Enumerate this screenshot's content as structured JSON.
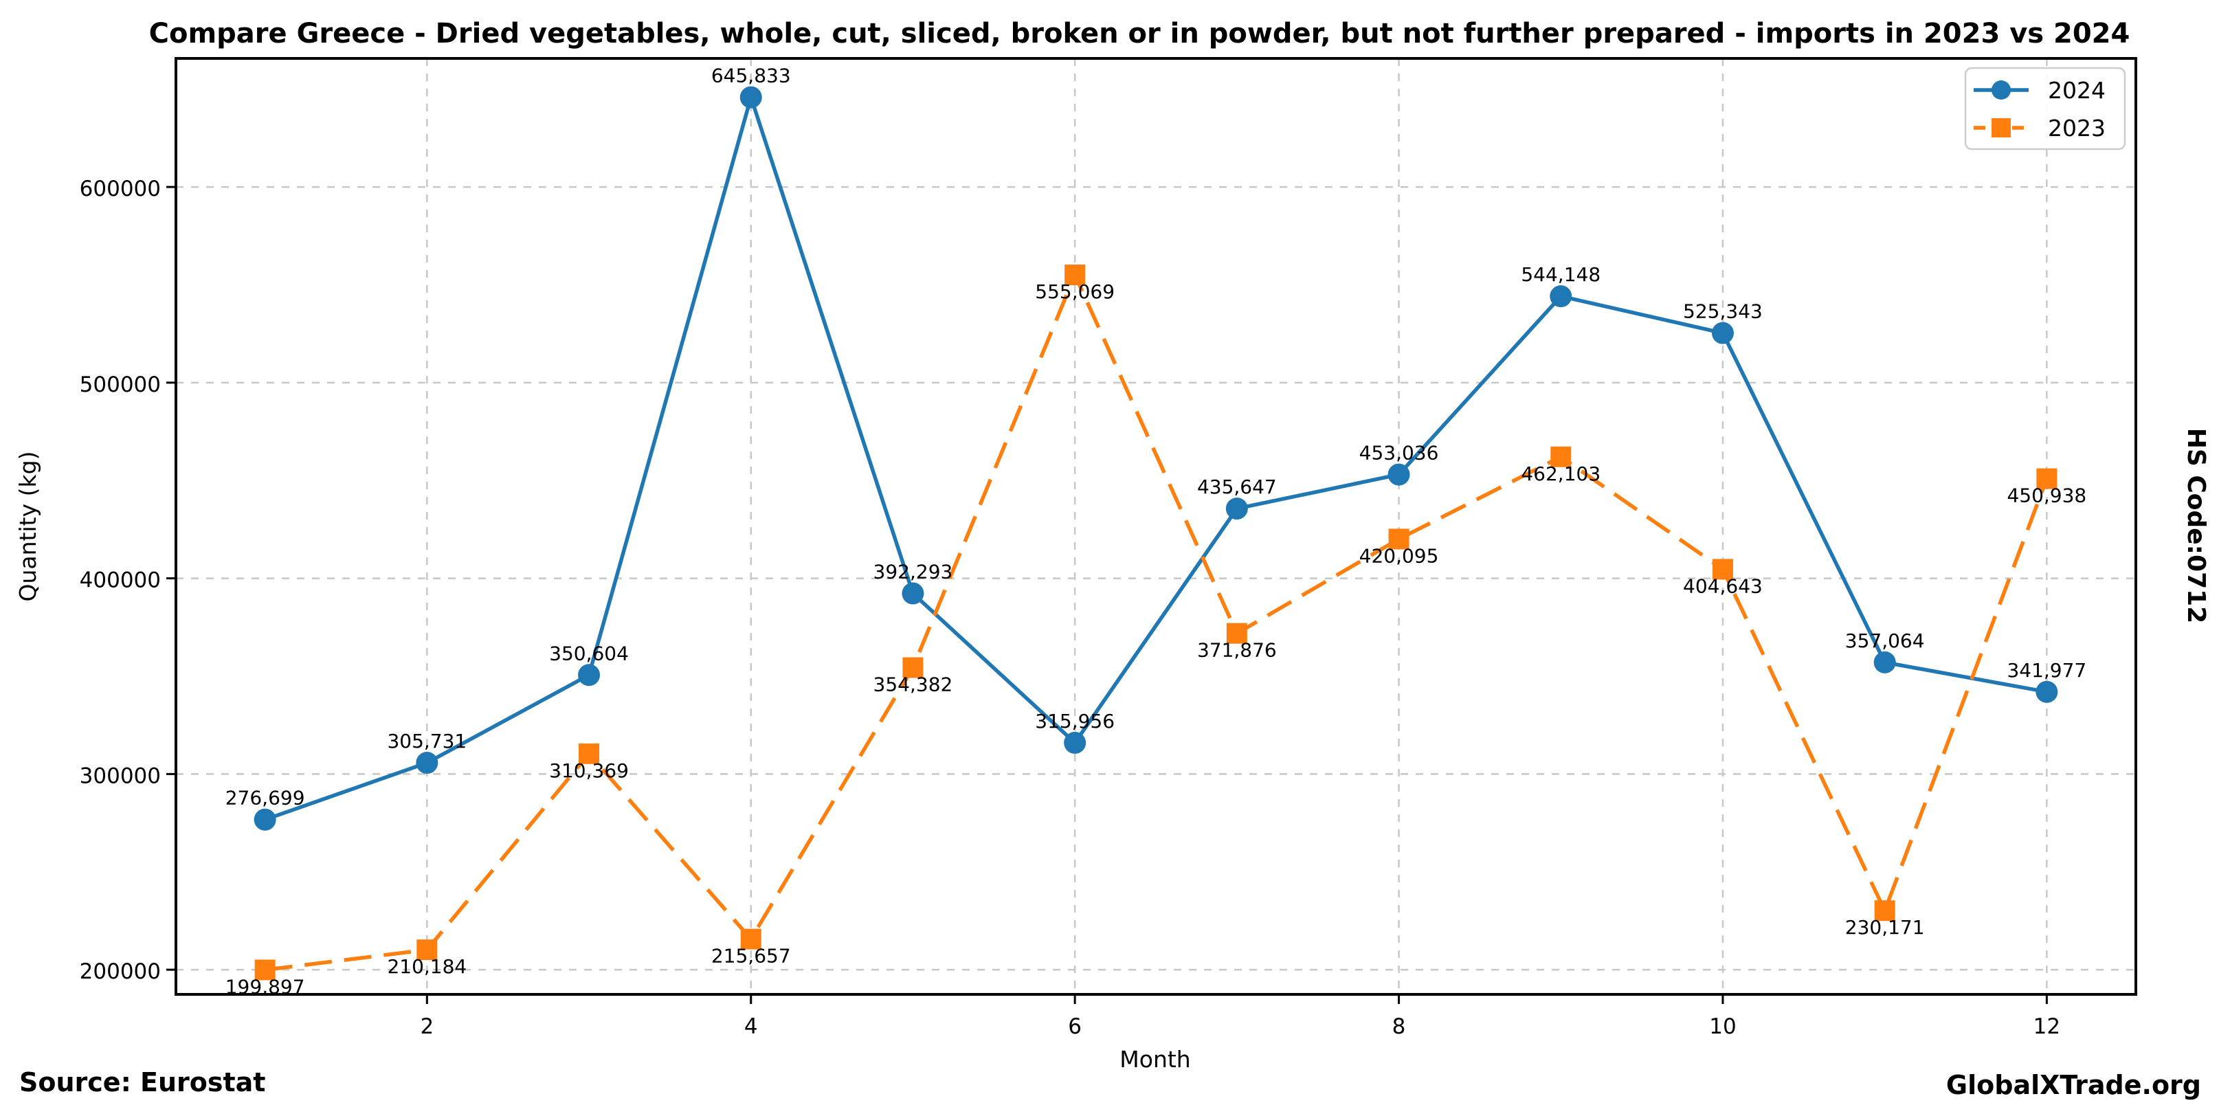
{
  "title": "Compare Greece - Dried vegetables, whole, cut, sliced, broken or in powder, but not further prepared - imports in 2023 vs 2024",
  "side_label": "HS Code:0712",
  "footer": {
    "source": "Source: Eurostat",
    "brand": "GlobalXTrade.org"
  },
  "colors": {
    "series_2024": "#1f77b4",
    "series_2023": "#ff7f0e",
    "grid": "#c8c8c8",
    "spine": "#000000",
    "text": "#000000",
    "legend_border": "#cccccc",
    "background": "#ffffff"
  },
  "chart_data": {
    "type": "line",
    "title": "Compare Greece - Dried vegetables, whole, cut, sliced, broken or in powder, but not further prepared - imports in 2023 vs 2024",
    "xlabel": "Month",
    "ylabel": "Quantity (kg)",
    "x": [
      1,
      2,
      3,
      4,
      5,
      6,
      7,
      8,
      9,
      10,
      11,
      12
    ],
    "x_ticks": [
      2,
      4,
      6,
      8,
      10,
      12
    ],
    "y_ticks": [
      200000,
      300000,
      400000,
      500000,
      600000
    ],
    "y_tick_labels": [
      "200000",
      "300000",
      "400000",
      "500000",
      "600000"
    ],
    "xlim": [
      0.45,
      12.55
    ],
    "ylim": [
      187400,
      665700
    ],
    "grid": true,
    "legend_position": "upper right",
    "series": [
      {
        "name": "2024",
        "color": "#1f77b4",
        "line_style": "solid",
        "marker": "circle",
        "values": [
          276699,
          305731,
          350604,
          645833,
          392293,
          315956,
          435647,
          453036,
          544148,
          525343,
          357064,
          341977
        ],
        "labels": [
          "276,699",
          "305,731",
          "350,604",
          "645,833",
          "392,293",
          "315,956",
          "435,647",
          "453,036",
          "544,148",
          "525,343",
          "357,064",
          "341,977"
        ]
      },
      {
        "name": "2023",
        "color": "#ff7f0e",
        "line_style": "dashed",
        "marker": "square",
        "values": [
          199897,
          210184,
          310369,
          215657,
          354382,
          555069,
          371876,
          420095,
          462103,
          404643,
          230171,
          450938
        ],
        "labels": [
          "199,897",
          "210,184",
          "310,369",
          "215,657",
          "354,382",
          "555,069",
          "371,876",
          "420,095",
          "462,103",
          "404,643",
          "230,171",
          "450,938"
        ]
      }
    ]
  }
}
